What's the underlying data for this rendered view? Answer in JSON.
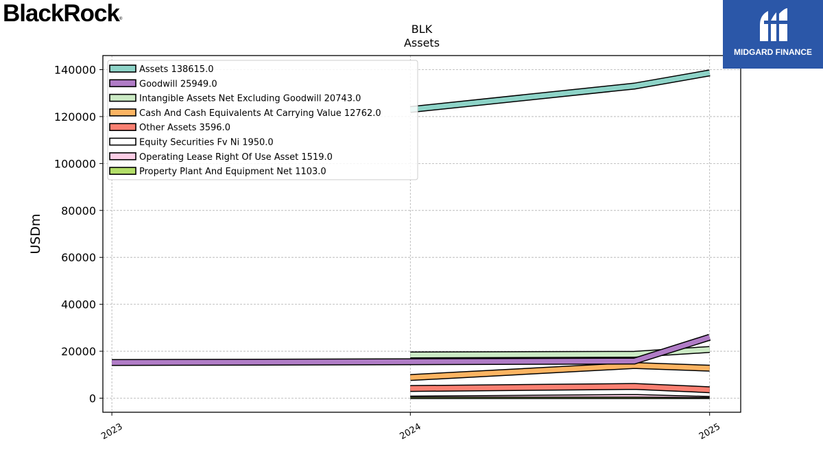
{
  "brand": {
    "logo_text": "BlackRock",
    "registered_mark": "®"
  },
  "watermark": {
    "text": "MIDGARD FINANCE",
    "bg_color": "#2b57a8"
  },
  "chart_data": {
    "type": "line",
    "title": "BLK",
    "subtitle": "Assets",
    "ylabel": "USDm",
    "xlabel": "",
    "ylim": [
      -6000,
      146000
    ],
    "xlim": [
      "2022-12-21",
      "2025-02-08"
    ],
    "yticks": [
      0,
      20000,
      40000,
      60000,
      80000,
      100000,
      120000,
      140000
    ],
    "xticks": [
      {
        "date": "2023-01-01",
        "label": "2023"
      },
      {
        "date": "2024-01-01",
        "label": "2024"
      },
      {
        "date": "2025-01-01",
        "label": "2025"
      }
    ],
    "grid": true,
    "legend_position": "top-left",
    "series": [
      {
        "name": "Assets",
        "legend": "Assets  138615.0",
        "color": "#8dd3c7",
        "points": [
          [
            "2024-01-01",
            123000
          ],
          [
            "2024-10-01",
            133000
          ],
          [
            "2025-01-01",
            138615
          ]
        ]
      },
      {
        "name": "Goodwill",
        "legend": "Goodwill  25949.0",
        "color": "#b07cc6",
        "points": [
          [
            "2023-01-01",
            15200
          ],
          [
            "2024-01-01",
            15500
          ],
          [
            "2024-10-01",
            15800
          ],
          [
            "2025-01-01",
            25949
          ]
        ]
      },
      {
        "name": "Intangible Assets Net Excluding Goodwill",
        "legend": "Intangible Assets Net Excluding Goodwill  20743.0",
        "color": "#ccebc5",
        "points": [
          [
            "2024-01-01",
            18400
          ],
          [
            "2024-10-01",
            18700
          ],
          [
            "2025-01-01",
            20743
          ]
        ]
      },
      {
        "name": "Cash And Cash Equivalents At Carrying Value",
        "legend": "Cash And Cash Equivalents At Carrying Value  12762.0",
        "color": "#fdb462",
        "points": [
          [
            "2024-01-01",
            8800
          ],
          [
            "2024-10-01",
            13900
          ],
          [
            "2025-01-01",
            12762
          ]
        ]
      },
      {
        "name": "Other Assets",
        "legend": "Other Assets  3596.0",
        "color": "#fb8072",
        "points": [
          [
            "2024-01-01",
            4100
          ],
          [
            "2024-10-01",
            5000
          ],
          [
            "2025-01-01",
            3596
          ]
        ]
      },
      {
        "name": "Equity Securities Fv Ni",
        "legend": "Equity Securities Fv Ni  1950.0",
        "color": "#ffffff",
        "points": [
          [
            "2024-01-01",
            2100
          ],
          [
            "2024-10-01",
            2800
          ],
          [
            "2025-01-01",
            1950
          ]
        ]
      },
      {
        "name": "Operating Lease Right Of Use Asset",
        "legend": "Operating Lease Right Of Use Asset  1519.0",
        "color": "#fccde5",
        "points": [
          [
            "2024-01-01",
            1700
          ],
          [
            "2024-10-01",
            1650
          ],
          [
            "2025-01-01",
            1519
          ]
        ]
      },
      {
        "name": "Property Plant And Equipment Net",
        "legend": "Property Plant And Equipment Net  1103.0",
        "color": "#b3de69",
        "points": [
          [
            "2024-01-01",
            1100
          ],
          [
            "2024-10-01",
            1100
          ],
          [
            "2025-01-01",
            1103
          ]
        ]
      }
    ]
  }
}
